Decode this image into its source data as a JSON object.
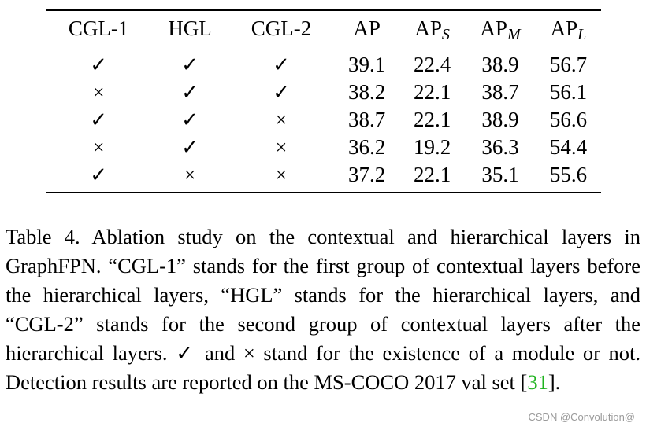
{
  "table": {
    "columns": [
      "CGL-1",
      "HGL",
      "CGL-2",
      "AP",
      "AP",
      "AP",
      "AP"
    ],
    "subscripts": [
      "",
      "",
      "",
      "",
      "S",
      "M",
      "L"
    ],
    "rows": [
      {
        "cells": [
          "✓",
          "✓",
          "✓",
          "39.1",
          "22.4",
          "38.9",
          "56.7"
        ],
        "bold": true
      },
      {
        "cells": [
          "×",
          "✓",
          "✓",
          "38.2",
          "22.1",
          "38.7",
          "56.1"
        ],
        "bold": false
      },
      {
        "cells": [
          "✓",
          "✓",
          "×",
          "38.7",
          "22.1",
          "38.9",
          "56.6"
        ],
        "bold": false
      },
      {
        "cells": [
          "×",
          "✓",
          "×",
          "36.2",
          "19.2",
          "36.3",
          "54.4"
        ],
        "bold": false
      },
      {
        "cells": [
          "✓",
          "×",
          "×",
          "37.2",
          "22.1",
          "35.1",
          "55.6"
        ],
        "bold": false
      }
    ]
  },
  "caption": {
    "text": "Table 4. Ablation study on the contextual and hierarchical layers in GraphFPN. “CGL-1” stands for the first group of contextual layers before the hierarchical layers, “HGL” stands for the hierarchical layers, and “CGL-2” stands for the second group of contextual layers after the hierarchical layers. ✓ and × stand for the existence of a module or not.  Detection results are reported on the MS-COCO 2017 val set [",
    "ref": "31",
    "end": "]."
  },
  "watermark": "CSDN @Convolution@"
}
